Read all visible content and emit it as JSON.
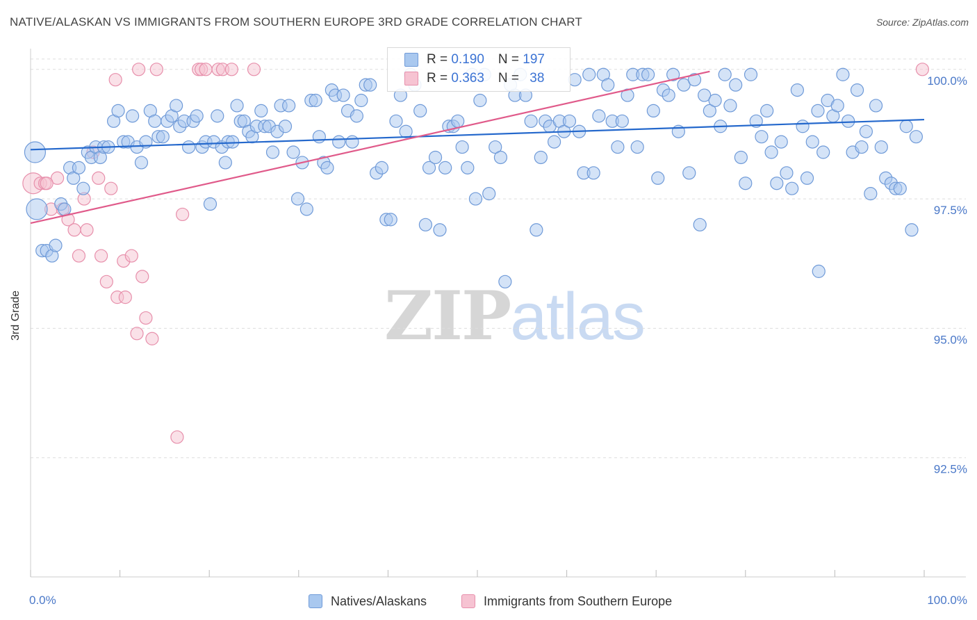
{
  "title": "NATIVE/ALASKAN VS IMMIGRANTS FROM SOUTHERN EUROPE 3RD GRADE CORRELATION CHART",
  "source": "Source: ZipAtlas.com",
  "watermark": {
    "zip": "ZIP",
    "atlas": "atlas"
  },
  "colors": {
    "blue_fill": "#a9c8ef",
    "blue_stroke": "#6f9ad8",
    "blue_line": "#2468cc",
    "pink_fill": "#f6c3d2",
    "pink_stroke": "#e78fab",
    "pink_line": "#e05a8a",
    "tick_text": "#4a78c8",
    "grid": "#dddddd"
  },
  "legend": {
    "series1": {
      "r_label": "R = ",
      "r_value": "0.190",
      "n_label": "N = ",
      "n_value": "197"
    },
    "series2": {
      "r_label": "R = ",
      "r_value": "0.363",
      "n_label": "N = ",
      "n_value": "38"
    }
  },
  "bottom_legend": {
    "series1": "Natives/Alaskans",
    "series2": "Immigrants from Southern Europe"
  },
  "chart_data": {
    "type": "scatter",
    "xlabel": "",
    "ylabel": "3rd Grade",
    "xlim": [
      0,
      100
    ],
    "ylim": [
      90.2,
      100.4
    ],
    "x_tick_labels": [
      "0.0%",
      "100.0%"
    ],
    "y_ticks": [
      {
        "value": 100.0,
        "label": "100.0%"
      },
      {
        "value": 97.5,
        "label": "97.5%"
      },
      {
        "value": 95.0,
        "label": "95.0%"
      },
      {
        "value": 92.5,
        "label": "92.5%"
      }
    ],
    "grid": "horizontal dashed",
    "series": [
      {
        "name": "Natives/Alaskans",
        "color": "#a9c8ef",
        "trend": {
          "x": [
            0,
            100
          ],
          "y": [
            98.45,
            99.03
          ]
        },
        "points": [
          [
            0.5,
            98.4,
            1
          ],
          [
            0.7,
            97.3,
            1
          ],
          [
            1.3,
            96.5,
            0
          ],
          [
            1.8,
            96.5,
            0
          ],
          [
            2.4,
            96.4,
            0
          ],
          [
            2.8,
            96.6,
            0
          ],
          [
            3.4,
            97.4,
            0
          ],
          [
            3.8,
            97.3,
            0
          ],
          [
            4.4,
            98.1,
            0
          ],
          [
            4.8,
            97.9,
            0
          ],
          [
            5.4,
            98.1,
            0
          ],
          [
            5.9,
            97.7,
            0
          ],
          [
            6.4,
            98.4,
            0
          ],
          [
            6.8,
            98.3,
            0
          ],
          [
            7.3,
            98.5,
            0
          ],
          [
            7.8,
            98.3,
            0
          ],
          [
            8.2,
            98.5,
            0
          ],
          [
            8.7,
            98.5,
            0
          ],
          [
            9.3,
            99.0,
            0
          ],
          [
            9.8,
            99.2,
            0
          ],
          [
            10.4,
            98.6,
            0
          ],
          [
            10.9,
            98.6,
            0
          ],
          [
            11.4,
            99.1,
            0
          ],
          [
            11.9,
            98.5,
            0
          ],
          [
            12.4,
            98.2,
            0
          ],
          [
            12.9,
            98.6,
            0
          ],
          [
            13.4,
            99.2,
            0
          ],
          [
            13.9,
            99.0,
            0
          ],
          [
            14.3,
            98.7,
            0
          ],
          [
            14.8,
            98.7,
            0
          ],
          [
            15.3,
            99.0,
            0
          ],
          [
            15.8,
            99.1,
            0
          ],
          [
            16.3,
            99.3,
            0
          ],
          [
            16.7,
            98.9,
            0
          ],
          [
            17.2,
            99.0,
            0
          ],
          [
            17.7,
            98.5,
            0
          ],
          [
            18.2,
            99.0,
            0
          ],
          [
            18.6,
            99.1,
            0
          ],
          [
            19.2,
            98.5,
            0
          ],
          [
            19.6,
            98.6,
            0
          ],
          [
            20.1,
            97.4,
            0
          ],
          [
            20.5,
            98.6,
            0
          ],
          [
            20.9,
            99.1,
            0
          ],
          [
            21.4,
            98.5,
            0
          ],
          [
            21.8,
            98.2,
            0
          ],
          [
            22.1,
            98.6,
            0
          ],
          [
            22.6,
            98.6,
            0
          ],
          [
            23.1,
            99.3,
            0
          ],
          [
            23.5,
            99.0,
            0
          ],
          [
            23.9,
            99.0,
            0
          ],
          [
            24.4,
            98.8,
            0
          ],
          [
            24.8,
            98.7,
            0
          ],
          [
            25.3,
            98.9,
            0
          ],
          [
            25.8,
            99.2,
            0
          ],
          [
            26.2,
            98.9,
            0
          ],
          [
            26.7,
            98.9,
            0
          ],
          [
            27.1,
            98.4,
            0
          ],
          [
            27.6,
            98.8,
            0
          ],
          [
            28.0,
            99.3,
            0
          ],
          [
            28.5,
            98.9,
            0
          ],
          [
            28.9,
            99.3,
            0
          ],
          [
            29.4,
            98.4,
            0
          ],
          [
            29.9,
            97.5,
            0
          ],
          [
            30.4,
            98.2,
            0
          ],
          [
            30.9,
            97.3,
            0
          ],
          [
            31.4,
            99.4,
            0
          ],
          [
            31.9,
            99.4,
            0
          ],
          [
            32.3,
            98.7,
            0
          ],
          [
            32.8,
            98.2,
            0
          ],
          [
            33.2,
            98.1,
            0
          ],
          [
            33.7,
            99.6,
            0
          ],
          [
            34.1,
            99.5,
            0
          ],
          [
            34.5,
            98.6,
            0
          ],
          [
            35.0,
            99.5,
            0
          ],
          [
            35.5,
            99.2,
            0
          ],
          [
            36.0,
            98.6,
            0
          ],
          [
            36.5,
            99.1,
            0
          ],
          [
            37.0,
            99.4,
            0
          ],
          [
            37.5,
            99.7,
            0
          ],
          [
            38.0,
            99.7,
            0
          ],
          [
            38.7,
            98.0,
            0
          ],
          [
            39.3,
            98.1,
            0
          ],
          [
            39.8,
            97.1,
            0
          ],
          [
            40.3,
            97.1,
            0
          ],
          [
            40.9,
            99.0,
            0
          ],
          [
            41.4,
            99.5,
            0
          ],
          [
            42.0,
            98.8,
            0
          ],
          [
            42.5,
            99.9,
            0
          ],
          [
            43.0,
            99.7,
            0
          ],
          [
            43.6,
            99.2,
            0
          ],
          [
            44.2,
            97.0,
            0
          ],
          [
            44.6,
            98.1,
            0
          ],
          [
            45.3,
            98.3,
            0
          ],
          [
            45.8,
            96.9,
            0
          ],
          [
            46.4,
            98.1,
            0
          ],
          [
            46.8,
            98.9,
            0
          ],
          [
            47.3,
            98.9,
            0
          ],
          [
            47.8,
            99.0,
            0
          ],
          [
            48.3,
            98.5,
            0
          ],
          [
            48.9,
            98.1,
            0
          ],
          [
            49.4,
            99.9,
            0
          ],
          [
            49.8,
            97.5,
            0
          ],
          [
            50.3,
            99.4,
            0
          ],
          [
            50.8,
            99.9,
            0
          ],
          [
            51.3,
            97.6,
            0
          ],
          [
            52.0,
            98.5,
            0
          ],
          [
            52.6,
            98.3,
            0
          ],
          [
            53.1,
            95.9,
            0
          ],
          [
            53.7,
            99.7,
            0
          ],
          [
            54.2,
            99.5,
            0
          ],
          [
            54.8,
            99.9,
            0
          ],
          [
            55.4,
            99.5,
            0
          ],
          [
            56.0,
            99.0,
            0
          ],
          [
            56.6,
            96.9,
            0
          ],
          [
            57.1,
            98.3,
            0
          ],
          [
            57.6,
            99.0,
            0
          ],
          [
            58.1,
            98.9,
            0
          ],
          [
            58.6,
            98.6,
            0
          ],
          [
            59.2,
            99.0,
            0
          ],
          [
            59.7,
            98.8,
            0
          ],
          [
            60.3,
            99.0,
            0
          ],
          [
            60.9,
            99.8,
            0
          ],
          [
            61.4,
            98.8,
            0
          ],
          [
            61.9,
            98.0,
            0
          ],
          [
            62.5,
            99.9,
            0
          ],
          [
            63.0,
            98.0,
            0
          ],
          [
            63.6,
            99.1,
            0
          ],
          [
            64.1,
            99.9,
            0
          ],
          [
            64.6,
            99.7,
            0
          ],
          [
            65.1,
            99.0,
            0
          ],
          [
            65.7,
            98.5,
            0
          ],
          [
            66.2,
            99.0,
            0
          ],
          [
            66.8,
            99.5,
            0
          ],
          [
            67.4,
            99.9,
            0
          ],
          [
            67.9,
            98.5,
            0
          ],
          [
            68.5,
            99.9,
            0
          ],
          [
            69.1,
            99.9,
            0
          ],
          [
            69.7,
            99.2,
            0
          ],
          [
            70.2,
            97.9,
            0
          ],
          [
            70.8,
            99.6,
            0
          ],
          [
            71.4,
            99.5,
            0
          ],
          [
            71.9,
            99.9,
            0
          ],
          [
            72.5,
            98.8,
            0
          ],
          [
            73.1,
            99.7,
            0
          ],
          [
            73.7,
            98.0,
            0
          ],
          [
            74.3,
            99.8,
            0
          ],
          [
            74.9,
            97.0,
            0
          ],
          [
            75.4,
            99.5,
            0
          ],
          [
            76.0,
            99.2,
            0
          ],
          [
            76.6,
            99.4,
            0
          ],
          [
            77.2,
            98.9,
            0
          ],
          [
            77.7,
            99.9,
            0
          ],
          [
            78.3,
            99.3,
            0
          ],
          [
            78.9,
            99.7,
            0
          ],
          [
            79.5,
            98.3,
            0
          ],
          [
            80.0,
            97.8,
            0
          ],
          [
            80.6,
            99.9,
            0
          ],
          [
            81.2,
            99.0,
            0
          ],
          [
            81.8,
            98.7,
            0
          ],
          [
            82.4,
            99.2,
            0
          ],
          [
            82.9,
            98.4,
            0
          ],
          [
            83.5,
            97.8,
            0
          ],
          [
            84.0,
            98.6,
            0
          ],
          [
            84.6,
            98.0,
            0
          ],
          [
            85.2,
            97.7,
            0
          ],
          [
            85.8,
            99.6,
            0
          ],
          [
            86.4,
            98.9,
            0
          ],
          [
            86.9,
            97.9,
            0
          ],
          [
            87.5,
            98.6,
            0
          ],
          [
            88.1,
            99.2,
            0
          ],
          [
            88.7,
            98.4,
            0
          ],
          [
            89.2,
            99.4,
            0
          ],
          [
            89.8,
            99.1,
            0
          ],
          [
            90.3,
            99.3,
            0
          ],
          [
            90.9,
            99.9,
            0
          ],
          [
            91.5,
            99.0,
            0
          ],
          [
            92.0,
            98.4,
            0
          ],
          [
            92.5,
            99.6,
            0
          ],
          [
            93.0,
            98.5,
            0
          ],
          [
            93.5,
            98.8,
            0
          ],
          [
            94.0,
            97.6,
            0
          ],
          [
            94.6,
            99.3,
            0
          ],
          [
            95.2,
            98.5,
            0
          ],
          [
            95.7,
            97.9,
            0
          ],
          [
            96.3,
            97.8,
            0
          ],
          [
            96.8,
            97.7,
            0
          ],
          [
            97.3,
            97.7,
            0
          ],
          [
            98.0,
            98.9,
            0
          ],
          [
            98.6,
            96.9,
            0
          ],
          [
            99.1,
            98.7,
            0
          ],
          [
            88.2,
            96.1,
            0
          ]
        ]
      },
      {
        "name": "Immigrants from Southern Europe",
        "color": "#f6c3d2",
        "trend": {
          "x": [
            0,
            76
          ],
          "y": [
            97.03,
            99.96
          ]
        },
        "points": [
          [
            0.3,
            97.8,
            1
          ],
          [
            1.1,
            97.8,
            0
          ],
          [
            1.6,
            97.8,
            0
          ],
          [
            2.3,
            97.3,
            0
          ],
          [
            3.0,
            97.9,
            0
          ],
          [
            3.6,
            97.3,
            0
          ],
          [
            4.2,
            97.1,
            0
          ],
          [
            4.9,
            96.9,
            0
          ],
          [
            5.4,
            96.4,
            0
          ],
          [
            6.0,
            97.5,
            0
          ],
          [
            6.3,
            96.9,
            0
          ],
          [
            7.0,
            98.4,
            0
          ],
          [
            7.6,
            97.9,
            0
          ],
          [
            7.9,
            96.4,
            0
          ],
          [
            8.5,
            95.9,
            0
          ],
          [
            9.0,
            97.7,
            0
          ],
          [
            9.5,
            99.8,
            0
          ],
          [
            9.7,
            95.6,
            0
          ],
          [
            10.6,
            95.6,
            0
          ],
          [
            10.4,
            96.3,
            0
          ],
          [
            11.3,
            96.4,
            0
          ],
          [
            11.9,
            94.9,
            0
          ],
          [
            12.5,
            96.0,
            0
          ],
          [
            12.9,
            95.2,
            0
          ],
          [
            13.6,
            94.8,
            0
          ],
          [
            12.1,
            100.0,
            0
          ],
          [
            14.1,
            100.0,
            0
          ],
          [
            16.4,
            92.9,
            0
          ],
          [
            17.0,
            97.2,
            0
          ],
          [
            18.8,
            100.0,
            0
          ],
          [
            19.1,
            100.0,
            0
          ],
          [
            19.6,
            100.0,
            0
          ],
          [
            21.0,
            100.0,
            0
          ],
          [
            21.5,
            100.0,
            0
          ],
          [
            22.5,
            100.0,
            0
          ],
          [
            25.0,
            100.0,
            0
          ],
          [
            99.8,
            100.0,
            0
          ],
          [
            1.8,
            97.8,
            0
          ]
        ]
      }
    ]
  }
}
